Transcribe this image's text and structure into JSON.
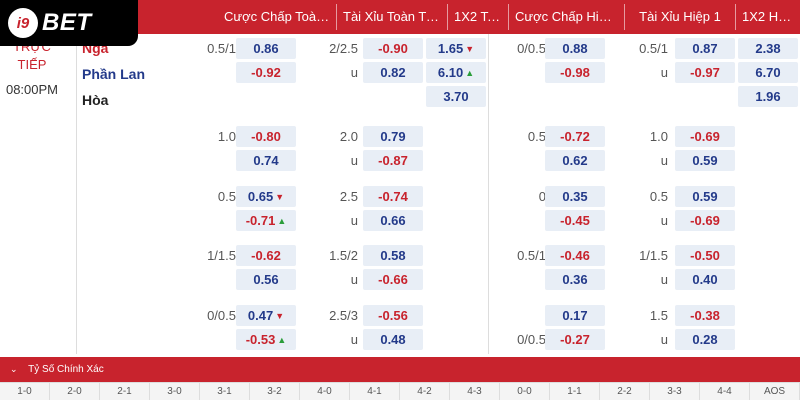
{
  "brand": {
    "badge": "i9",
    "name": "BET"
  },
  "headers": [
    "Cược Chấp Toàn ...",
    "Tài Xỉu Toàn Trận",
    "1X2 Toà...",
    "Cược Chấp Hiệp 1",
    "Tài Xỉu Hiệp 1",
    "1X2 Hiệ..."
  ],
  "match": {
    "status_line1": "TRỰC",
    "status_line2": "TIẾP",
    "time": "08:00PM",
    "home": "Nga",
    "away": "Phần Lan",
    "draw": "Hòa"
  },
  "odds_rows": [
    {
      "ah_line": "0.5/1",
      "ah_top": "0.86",
      "ah_bot": "-0.92",
      "ah_top_arrow": "",
      "ah_bot_arrow": "",
      "ou_line": "2/2.5",
      "ou_u": "u",
      "ou_top": "-0.90",
      "ou_bot": "0.82",
      "x12_1": "1.65",
      "x12_1_arrow": "▼",
      "x12_2": "6.10",
      "x12_2_arrow": "▲",
      "x12_3": "3.70",
      "h_ah_line": "0/0.5",
      "h_ah_top": "0.88",
      "h_ah_bot": "-0.98",
      "h_ou_line": "0.5/1",
      "h_ou_u": "u",
      "h_ou_top": "0.87",
      "h_ou_bot": "-0.97",
      "h_x12_1": "2.38",
      "h_x12_2": "6.70",
      "h_x12_3": "1.96"
    },
    {
      "ah_line": "1.0",
      "ah_top": "-0.80",
      "ah_bot": "0.74",
      "ah_top_arrow": "",
      "ah_bot_arrow": "",
      "ou_line": "2.0",
      "ou_u": "u",
      "ou_top": "0.79",
      "ou_bot": "-0.87",
      "h_ah_line": "0.5",
      "h_ah_top": "-0.72",
      "h_ah_bot": "0.62",
      "h_ou_line": "1.0",
      "h_ou_u": "u",
      "h_ou_top": "-0.69",
      "h_ou_bot": "0.59"
    },
    {
      "ah_line": "0.5",
      "ah_top": "0.65",
      "ah_bot": "-0.71",
      "ah_top_arrow": "▼",
      "ah_bot_arrow": "▲",
      "ou_line": "2.5",
      "ou_u": "u",
      "ou_top": "-0.74",
      "ou_bot": "0.66",
      "h_ah_line": "0",
      "h_ah_top": "0.35",
      "h_ah_bot": "-0.45",
      "h_ou_line": "0.5",
      "h_ou_u": "u",
      "h_ou_top": "0.59",
      "h_ou_bot": "-0.69"
    },
    {
      "ah_line": "1/1.5",
      "ah_top": "-0.62",
      "ah_bot": "0.56",
      "ah_top_arrow": "",
      "ah_bot_arrow": "",
      "ou_line": "1.5/2",
      "ou_u": "u",
      "ou_top": "0.58",
      "ou_bot": "-0.66",
      "h_ah_line": "0.5/1",
      "h_ah_top": "-0.46",
      "h_ah_bot": "0.36",
      "h_ou_line": "1/1.5",
      "h_ou_u": "u",
      "h_ou_top": "-0.50",
      "h_ou_bot": "0.40"
    },
    {
      "ah_line": "0/0.5",
      "ah_top": "0.47",
      "ah_bot": "-0.53",
      "ah_top_arrow": "▼",
      "ah_bot_arrow": "▲",
      "ou_line": "2.5/3",
      "ou_u": "u",
      "ou_top": "-0.56",
      "ou_bot": "0.48",
      "h_ah_line": "",
      "h_ah_line2": "0/0.5",
      "h_ah_top": "0.17",
      "h_ah_bot": "-0.27",
      "h_ou_line": "1.5",
      "h_ou_u": "u",
      "h_ou_top": "-0.38",
      "h_ou_bot": "0.28"
    }
  ],
  "exact_score": {
    "title": "Tỷ Số Chính Xác",
    "scores": [
      "1-0",
      "2-0",
      "2-1",
      "3-0",
      "3-1",
      "3-2",
      "4-0",
      "4-1",
      "4-2",
      "4-3",
      "0-0",
      "1-1",
      "2-2",
      "3-3",
      "4-4",
      "AOS"
    ]
  },
  "colors": {
    "header_bg": "#c8232d",
    "positive_odds": "#233a8a",
    "negative_odds": "#c8232d",
    "odds_cell_bg": "#e8eef6",
    "arrow_up": "#2a9d3a",
    "arrow_down": "#c8232d"
  }
}
